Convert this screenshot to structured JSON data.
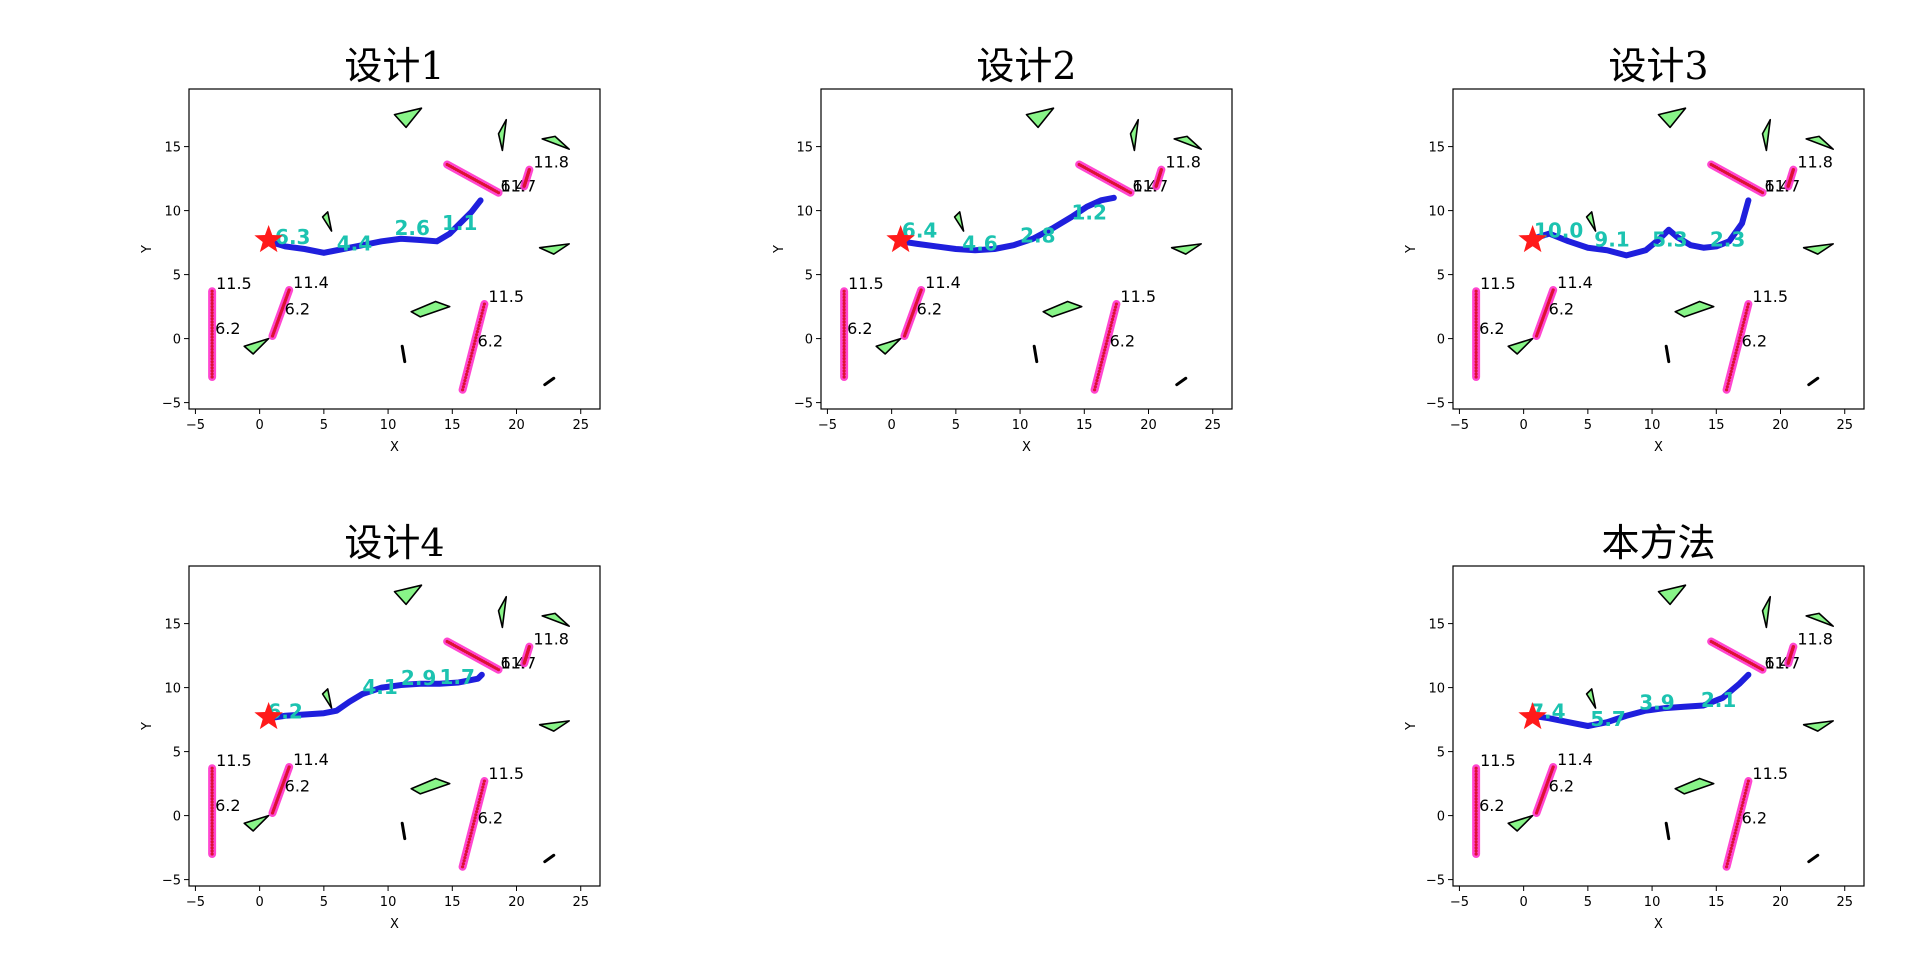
{
  "figure": {
    "background": "#ffffff"
  },
  "chart_data": [
    {
      "type": "scatter",
      "title": "设计1",
      "xlabel": "X",
      "ylabel": "Y",
      "xlim": [
        -5.5,
        26.5
      ],
      "ylim": [
        -5.5,
        19.5
      ],
      "xticks": [
        -5,
        0,
        5,
        10,
        15,
        20,
        25
      ],
      "yticks": [
        -5,
        0,
        5,
        10,
        15
      ],
      "start": [
        0.7,
        7.7
      ],
      "path": [
        [
          0.7,
          7.6
        ],
        [
          2,
          7.2
        ],
        [
          3.5,
          7.0
        ],
        [
          5,
          6.7
        ],
        [
          6.5,
          7.0
        ],
        [
          8,
          7.3
        ],
        [
          9.5,
          7.6
        ],
        [
          11,
          7.8
        ],
        [
          12.5,
          7.7
        ],
        [
          13.8,
          7.6
        ],
        [
          14.8,
          8.2
        ],
        [
          15.6,
          9.0
        ],
        [
          16.5,
          9.9
        ],
        [
          17.2,
          10.8
        ]
      ],
      "labels": [
        {
          "text": "6.3",
          "x": 1.2,
          "y": 7.4
        },
        {
          "text": "4.4",
          "x": 6,
          "y": 6.9
        },
        {
          "text": "2.6",
          "x": 10.5,
          "y": 8.1
        },
        {
          "text": "1.1",
          "x": 14.2,
          "y": 8.5
        }
      ]
    },
    {
      "type": "scatter",
      "title": "设计2",
      "xlabel": "X",
      "ylabel": "Y",
      "xlim": [
        -5.5,
        26.5
      ],
      "ylim": [
        -5.5,
        19.5
      ],
      "xticks": [
        -5,
        0,
        5,
        10,
        15,
        20,
        25
      ],
      "yticks": [
        -5,
        0,
        5,
        10,
        15
      ],
      "start": [
        0.7,
        7.7
      ],
      "path": [
        [
          0.7,
          7.6
        ],
        [
          2,
          7.4
        ],
        [
          3.5,
          7.2
        ],
        [
          5,
          7.0
        ],
        [
          6.5,
          6.9
        ],
        [
          8,
          7.0
        ],
        [
          9.5,
          7.3
        ],
        [
          11,
          7.8
        ],
        [
          12.5,
          8.6
        ],
        [
          14,
          9.5
        ],
        [
          15.2,
          10.3
        ],
        [
          16.3,
          10.8
        ],
        [
          17.3,
          11.0
        ]
      ],
      "labels": [
        {
          "text": "6.4",
          "x": 0.8,
          "y": 7.9
        },
        {
          "text": "4.6",
          "x": 5.5,
          "y": 6.9
        },
        {
          "text": "2.8",
          "x": 10,
          "y": 7.5
        },
        {
          "text": "1.2",
          "x": 14,
          "y": 9.3
        }
      ]
    },
    {
      "type": "scatter",
      "title": "设计3",
      "xlabel": "X",
      "ylabel": "Y",
      "xlim": [
        -5.5,
        26.5
      ],
      "ylim": [
        -5.5,
        19.5
      ],
      "xticks": [
        -5,
        0,
        5,
        10,
        15,
        20,
        25
      ],
      "yticks": [
        -5,
        0,
        5,
        10,
        15
      ],
      "start": [
        0.7,
        7.7
      ],
      "path": [
        [
          0.7,
          7.8
        ],
        [
          2,
          8.2
        ],
        [
          3.5,
          7.6
        ],
        [
          5,
          7.1
        ],
        [
          6.5,
          6.9
        ],
        [
          8,
          6.5
        ],
        [
          9.5,
          6.9
        ],
        [
          10.6,
          7.8
        ],
        [
          11.3,
          8.5
        ],
        [
          12,
          7.9
        ],
        [
          13,
          7.3
        ],
        [
          14,
          7.1
        ],
        [
          15,
          7.2
        ],
        [
          16,
          7.6
        ],
        [
          17,
          9.0
        ],
        [
          17.5,
          10.8
        ]
      ],
      "labels": [
        {
          "text": "10.0",
          "x": 0.8,
          "y": 7.9
        },
        {
          "text": "9.1",
          "x": 5.5,
          "y": 7.2
        },
        {
          "text": "5.3",
          "x": 10,
          "y": 7.2
        },
        {
          "text": "2.3",
          "x": 14.5,
          "y": 7.2
        }
      ]
    },
    {
      "type": "scatter",
      "title": "设计4",
      "xlabel": "X",
      "ylabel": "Y",
      "xlim": [
        -5.5,
        26.5
      ],
      "ylim": [
        -5.5,
        19.5
      ],
      "xticks": [
        -5,
        0,
        5,
        10,
        15,
        20,
        25
      ],
      "yticks": [
        -5,
        0,
        5,
        10,
        15
      ],
      "start": [
        0.7,
        7.7
      ],
      "path": [
        [
          0.7,
          7.6
        ],
        [
          2,
          7.8
        ],
        [
          3.5,
          7.9
        ],
        [
          5,
          8.0
        ],
        [
          6,
          8.2
        ],
        [
          7,
          8.9
        ],
        [
          8,
          9.5
        ],
        [
          9.5,
          10.0
        ],
        [
          11,
          10.2
        ],
        [
          12.5,
          10.3
        ],
        [
          14,
          10.3
        ],
        [
          15.5,
          10.4
        ],
        [
          17,
          10.7
        ],
        [
          17.3,
          11.0
        ]
      ],
      "labels": [
        {
          "text": "6.2",
          "x": 0.6,
          "y": 7.6
        },
        {
          "text": "4.1",
          "x": 8,
          "y": 9.5
        },
        {
          "text": "2.9",
          "x": 11,
          "y": 10.2
        },
        {
          "text": "1.7",
          "x": 14,
          "y": 10.3
        }
      ]
    },
    {
      "type": "scatter",
      "title": "本方法",
      "xlabel": "X",
      "ylabel": "Y",
      "xlim": [
        -5.5,
        26.5
      ],
      "ylim": [
        -5.5,
        19.5
      ],
      "xticks": [
        -5,
        0,
        5,
        10,
        15,
        20,
        25
      ],
      "yticks": [
        -5,
        0,
        5,
        10,
        15
      ],
      "start": [
        0.7,
        7.7
      ],
      "path": [
        [
          0.7,
          7.8
        ],
        [
          2,
          7.6
        ],
        [
          3.5,
          7.3
        ],
        [
          5,
          7.0
        ],
        [
          6.5,
          7.3
        ],
        [
          8,
          7.8
        ],
        [
          9.5,
          8.2
        ],
        [
          11,
          8.4
        ],
        [
          12.5,
          8.5
        ],
        [
          14,
          8.6
        ],
        [
          15.5,
          9.2
        ],
        [
          16.8,
          10.3
        ],
        [
          17.5,
          11.0
        ]
      ],
      "labels": [
        {
          "text": "7.4",
          "x": 0.5,
          "y": 7.6
        },
        {
          "text": "5.7",
          "x": 5.2,
          "y": 7.0
        },
        {
          "text": "3.9",
          "x": 9,
          "y": 8.3
        },
        {
          "text": "2.1",
          "x": 13.8,
          "y": 8.5
        }
      ]
    }
  ],
  "scene": {
    "obstacles": [
      [
        [
          10.5,
          17.5
        ],
        [
          12.6,
          18.0
        ],
        [
          11.4,
          16.5
        ]
      ],
      [
        [
          18.6,
          16.0
        ],
        [
          19.2,
          17.1
        ],
        [
          18.9,
          14.7
        ]
      ],
      [
        [
          22.0,
          15.6
        ],
        [
          23.0,
          15.8
        ],
        [
          24.1,
          14.8
        ]
      ],
      [
        [
          4.9,
          9.5
        ],
        [
          5.3,
          9.9
        ],
        [
          5.6,
          8.4
        ]
      ],
      [
        [
          21.8,
          7.1
        ],
        [
          24.1,
          7.4
        ],
        [
          22.9,
          6.6
        ]
      ],
      [
        [
          11.8,
          2.1
        ],
        [
          13.7,
          2.9
        ],
        [
          14.8,
          2.5
        ],
        [
          12.5,
          1.7
        ]
      ],
      [
        [
          -1.2,
          -0.6
        ],
        [
          0.7,
          0.0
        ],
        [
          -0.5,
          -1.2
        ]
      ]
    ],
    "walls": [
      [
        [
          11.1,
          -0.6
        ],
        [
          11.3,
          -1.8
        ]
      ],
      [
        [
          22.2,
          -3.6
        ],
        [
          22.9,
          -3.1
        ]
      ]
    ],
    "pedestrians": [
      {
        "from": [
          -3.7,
          -3.0
        ],
        "to": [
          -3.7,
          3.7
        ],
        "label_top": "11.5",
        "label_mid": "6.2"
      },
      {
        "from": [
          1.0,
          0.2
        ],
        "to": [
          2.3,
          3.8
        ],
        "label_top": "11.4",
        "label_mid": "6.2"
      },
      {
        "from": [
          15.8,
          -4.0
        ],
        "to": [
          17.5,
          2.7
        ],
        "label_top": "11.5",
        "label_mid": "6.2"
      },
      {
        "from": [
          14.6,
          13.6
        ],
        "to": [
          18.6,
          11.4
        ],
        "label_top": "11.7",
        "label_mid": "6.4"
      },
      {
        "from": [
          20.6,
          11.9
        ],
        "to": [
          21.0,
          13.2
        ],
        "label_top": "11.8",
        "label_mid": ""
      }
    ],
    "colors": {
      "path": "#1f1fdd",
      "label": "#1cc3b0",
      "star": "#ff1a1a",
      "pedestrian_outer": "#ff33cc",
      "pedestrian_inner": "#dd1133",
      "obstacle_fill": "#88f588"
    }
  }
}
